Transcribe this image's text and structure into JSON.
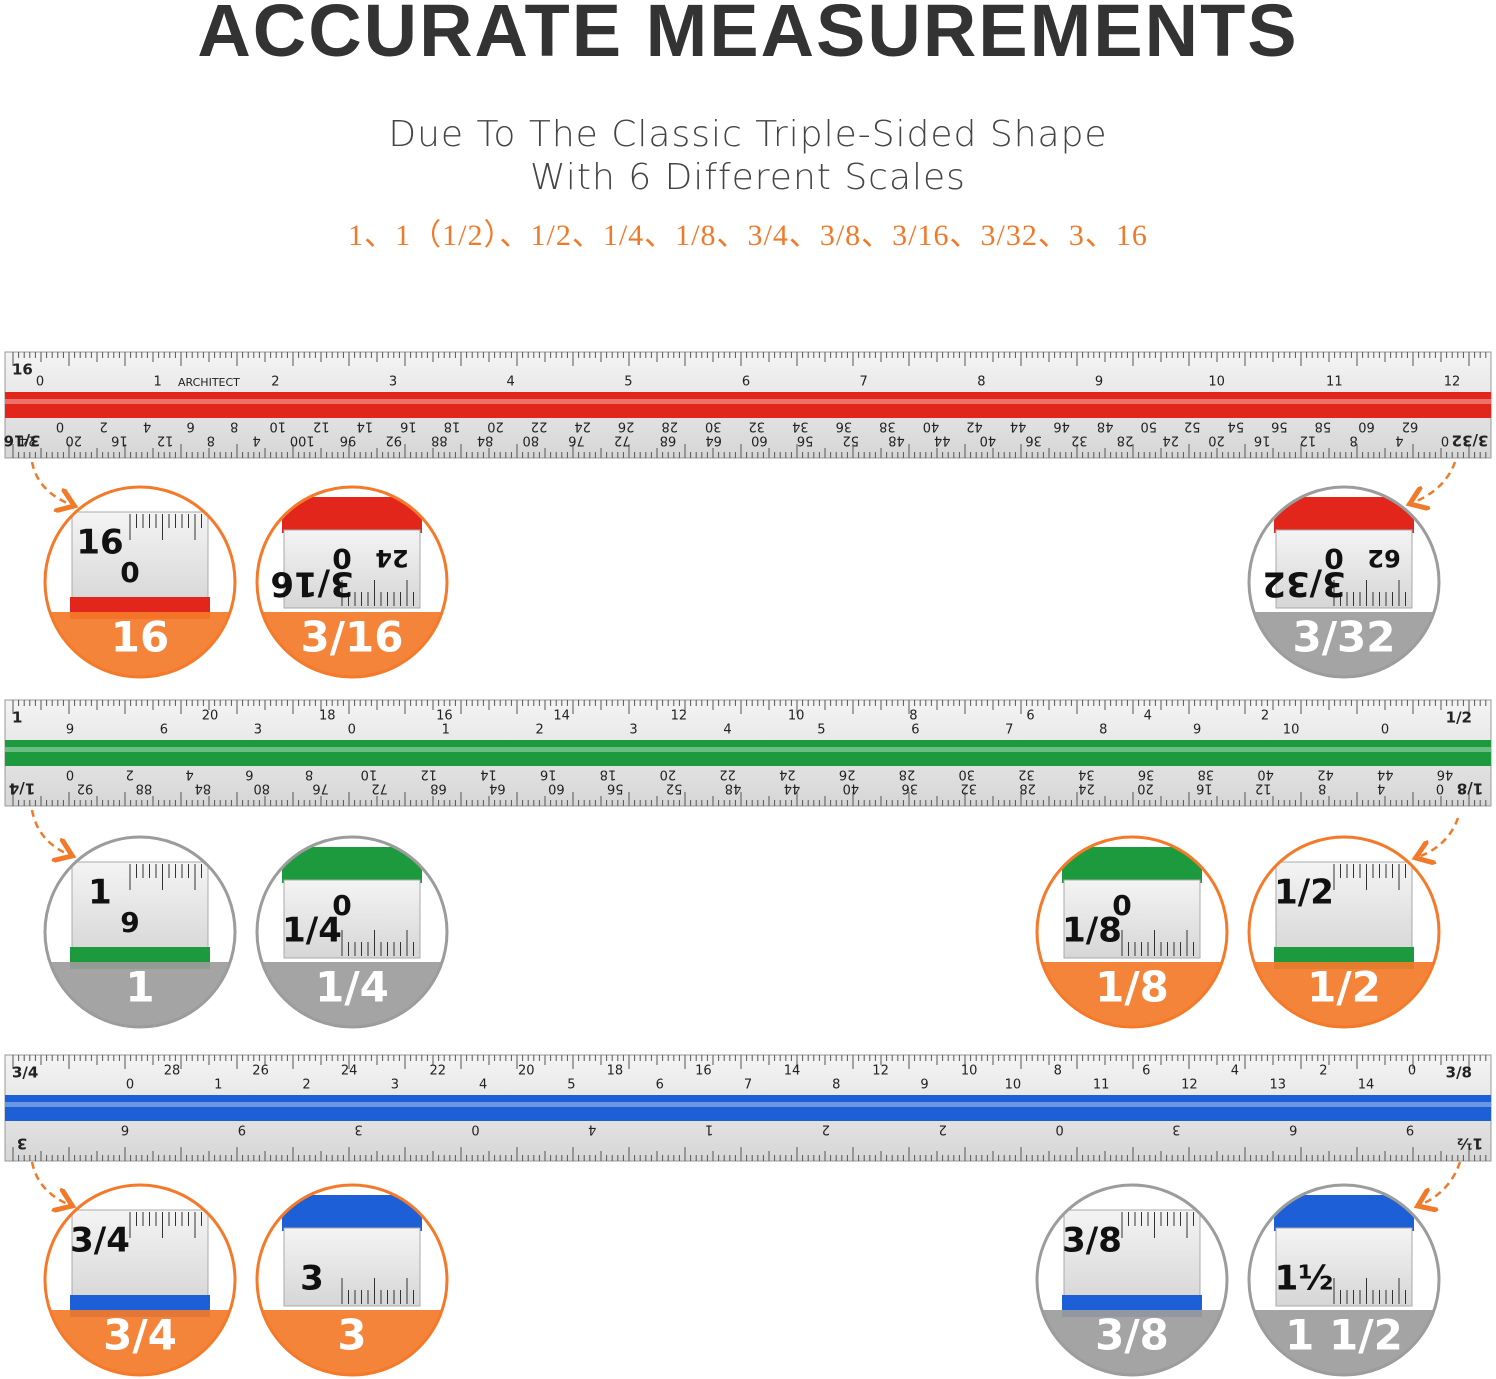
{
  "header": {
    "title": "ACCURATE MEASUREMENTS",
    "subtitle": [
      "Due To The Classic Triple-Sided Shape",
      "With 6 Different Scales"
    ],
    "scales": "1、1（1/2）、1/2、1/4、1/8、3/4、3/8、3/16、3/32、3、16"
  },
  "rulers": [
    {
      "left_top": "16",
      "brand": "ARCHITECT",
      "top_lower": [
        "0",
        "1",
        "2",
        "3",
        "4",
        "5",
        "6",
        "7",
        "8",
        "9",
        "10",
        "11",
        "12"
      ],
      "left_bottom": "3/16",
      "right_bottom": "3/32",
      "bottom_upper": [
        "0",
        "2",
        "4",
        "6",
        "8",
        "10",
        "12",
        "14",
        "16",
        "18",
        "20",
        "22",
        "24",
        "26",
        "28",
        "30",
        "32",
        "34",
        "36",
        "38",
        "40",
        "42",
        "44",
        "46",
        "48",
        "50",
        "52",
        "54",
        "56",
        "58",
        "60",
        "62"
      ],
      "bottom_lower": [
        "24",
        "20",
        "16",
        "12",
        "8",
        "4",
        "100",
        "96",
        "92",
        "88",
        "84",
        "80",
        "76",
        "72",
        "68",
        "64",
        "60",
        "56",
        "52",
        "48",
        "44",
        "40",
        "36",
        "32",
        "28",
        "24",
        "20",
        "16",
        "12",
        "8",
        "4",
        "0"
      ]
    },
    {
      "left_top": "1",
      "right_top": "1/2",
      "top_upper": [
        "20",
        "18",
        "16",
        "14",
        "12",
        "10",
        "8",
        "6",
        "4",
        "2"
      ],
      "top_lower": [
        "9",
        "6",
        "3",
        "0",
        "1",
        "2",
        "3",
        "4",
        "5",
        "6",
        "7",
        "8",
        "9",
        "10",
        "0"
      ],
      "left_bottom": "1/4",
      "right_bottom": "1/8",
      "bottom_upper": [
        "0",
        "2",
        "4",
        "6",
        "8",
        "10",
        "12",
        "14",
        "16",
        "18",
        "20",
        "22",
        "24",
        "26",
        "28",
        "30",
        "32",
        "34",
        "36",
        "38",
        "40",
        "42",
        "44",
        "46"
      ],
      "bottom_lower": [
        "92",
        "88",
        "84",
        "80",
        "76",
        "72",
        "68",
        "64",
        "60",
        "56",
        "52",
        "48",
        "44",
        "40",
        "36",
        "32",
        "28",
        "24",
        "20",
        "16",
        "12",
        "8",
        "4",
        "0"
      ]
    },
    {
      "left_top": "3/4",
      "right_top": "3/8",
      "top_upper": [
        "28",
        "26",
        "24",
        "22",
        "20",
        "18",
        "16",
        "14",
        "12",
        "10",
        "8",
        "6",
        "4",
        "2",
        "0"
      ],
      "top_lower": [
        "0",
        "1",
        "2",
        "3",
        "4",
        "5",
        "6",
        "7",
        "8",
        "9",
        "10",
        "11",
        "12",
        "13",
        "14"
      ],
      "left_bottom": "3",
      "right_bottom": "1½",
      "bottom_upper": [
        "6",
        "9",
        "3",
        "0",
        "4",
        "1",
        "2",
        "2",
        "0",
        "3",
        "6",
        "9"
      ]
    }
  ],
  "circles": [
    {
      "label": "16",
      "texts": [
        "16",
        "0"
      ]
    },
    {
      "label": "3/16",
      "texts": [
        "3/16",
        "0",
        "24"
      ]
    },
    {
      "label": "3/32",
      "texts": [
        "3/32",
        "0",
        "62"
      ]
    },
    {
      "label": "1",
      "texts": [
        "1",
        "9"
      ]
    },
    {
      "label": "1/4",
      "texts": [
        "1/4",
        "0"
      ]
    },
    {
      "label": "1/8",
      "texts": [
        "1/8",
        "0"
      ]
    },
    {
      "label": "1/2",
      "texts": [
        "1/2"
      ]
    },
    {
      "label": "3/4",
      "texts": [
        "3/4"
      ]
    },
    {
      "label": "3",
      "texts": [
        "3"
      ]
    },
    {
      "label": "3/8",
      "texts": [
        "3/8"
      ]
    },
    {
      "label": "1 1/2",
      "texts": [
        "1½"
      ]
    }
  ]
}
